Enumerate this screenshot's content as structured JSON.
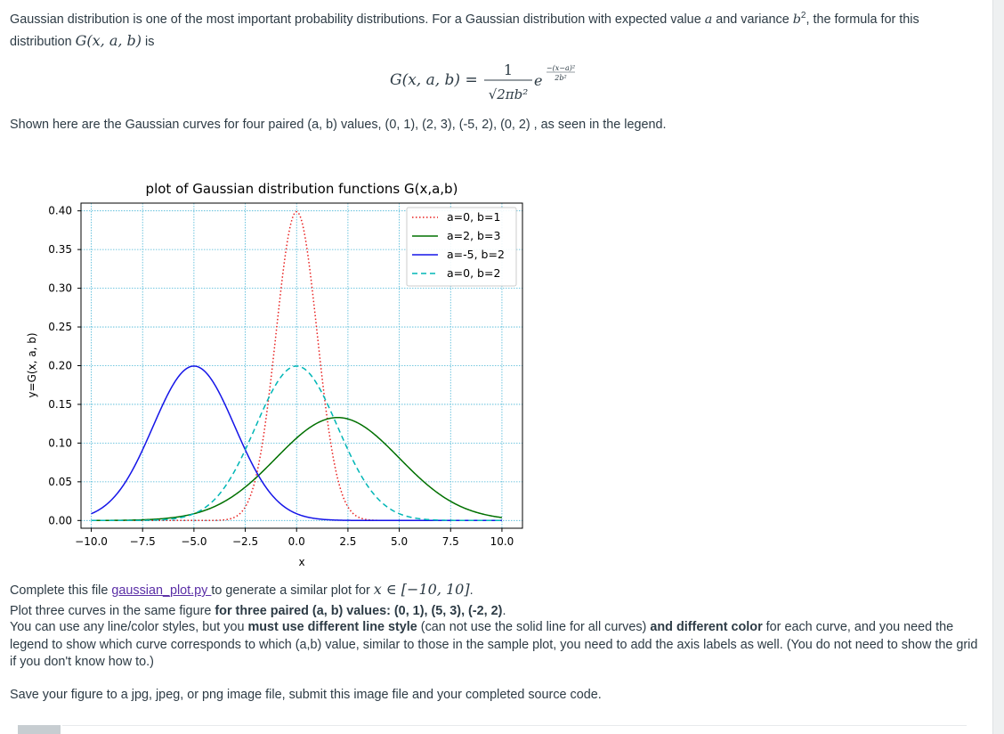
{
  "intro": {
    "text_a": "Gaussian distribution is one of the most important probability distributions.  For a Gaussian distribution with expected value ",
    "var_a": "a",
    "text_b": " and variance ",
    "var_b2": "b",
    "sup2": "2",
    "text_c": ", the formula for this distribution ",
    "func": "G(x, a, b)",
    "text_d": " is"
  },
  "formula": {
    "lhs": "G(x, a, b) =",
    "numerator": "1",
    "denominator": "√2πb²",
    "base": "e",
    "exponent_num": "−(x−a)²",
    "exponent_den": "2b²"
  },
  "caption": "Shown here are the Gaussian curves for four paired (a, b) values, (0, 1), (2, 3), (-5, 2), (0, 2) , as seen in the legend.",
  "chart_data": {
    "type": "line",
    "title": "plot of Gaussian distribution functions G(x,a,b)",
    "xlabel": "x",
    "ylabel": "y=G(x, a, b)",
    "xlim": [
      -10.5,
      11.0
    ],
    "ylim": [
      -0.01,
      0.41
    ],
    "xticks": [
      "−10.0",
      "−7.5",
      "−5.0",
      "−2.5",
      "0.0",
      "2.5",
      "5.0",
      "7.5",
      "10.0"
    ],
    "yticks": [
      "0.00",
      "0.05",
      "0.10",
      "0.15",
      "0.20",
      "0.25",
      "0.30",
      "0.35",
      "0.40"
    ],
    "grid": true,
    "grid_color": "#49b6d6",
    "legend_position": "top-right",
    "x_domain": [
      -10,
      10
    ],
    "series": [
      {
        "name": "a=0, b=1",
        "a": 0,
        "b": 1,
        "color": "#e8201f",
        "style": "dotted"
      },
      {
        "name": "a=2, b=3",
        "a": 2,
        "b": 3,
        "color": "#007000",
        "style": "solid"
      },
      {
        "name": "a=-5, b=2",
        "a": -5,
        "b": 2,
        "color": "#1515e8",
        "style": "solid"
      },
      {
        "name": "a=0, b=2",
        "a": 0,
        "b": 2,
        "color": "#00b6b6",
        "style": "dashed"
      }
    ]
  },
  "complete": {
    "text_a": "Complete this file ",
    "link": "gaussian_plot.py ",
    "text_b": " to generate a similar plot for ",
    "math": "x ∈ [−10, 10]",
    "text_c": "."
  },
  "plot3": {
    "text_a": "Plot three curves in the same figure ",
    "bold": "for three paired (a, b) values:   (0, 1), (5, 3), (-2, 2)",
    "text_b": "."
  },
  "rules": {
    "text_a": "You can use any line/color styles, but you ",
    "bold_a": "must use different line style",
    "text_b": " (can not use the solid line for all curves) ",
    "bold_b": "and different color",
    "text_c": " for each curve, and you need the legend to show which curve corresponds to which (a,b) value, similar to those in the sample plot, you need to add the axis labels as well.  (You do not need to show the grid if you don't know how to.)"
  },
  "save": "Save your figure to a jpg, jpeg, or png image file, submit this image file and your completed source code."
}
